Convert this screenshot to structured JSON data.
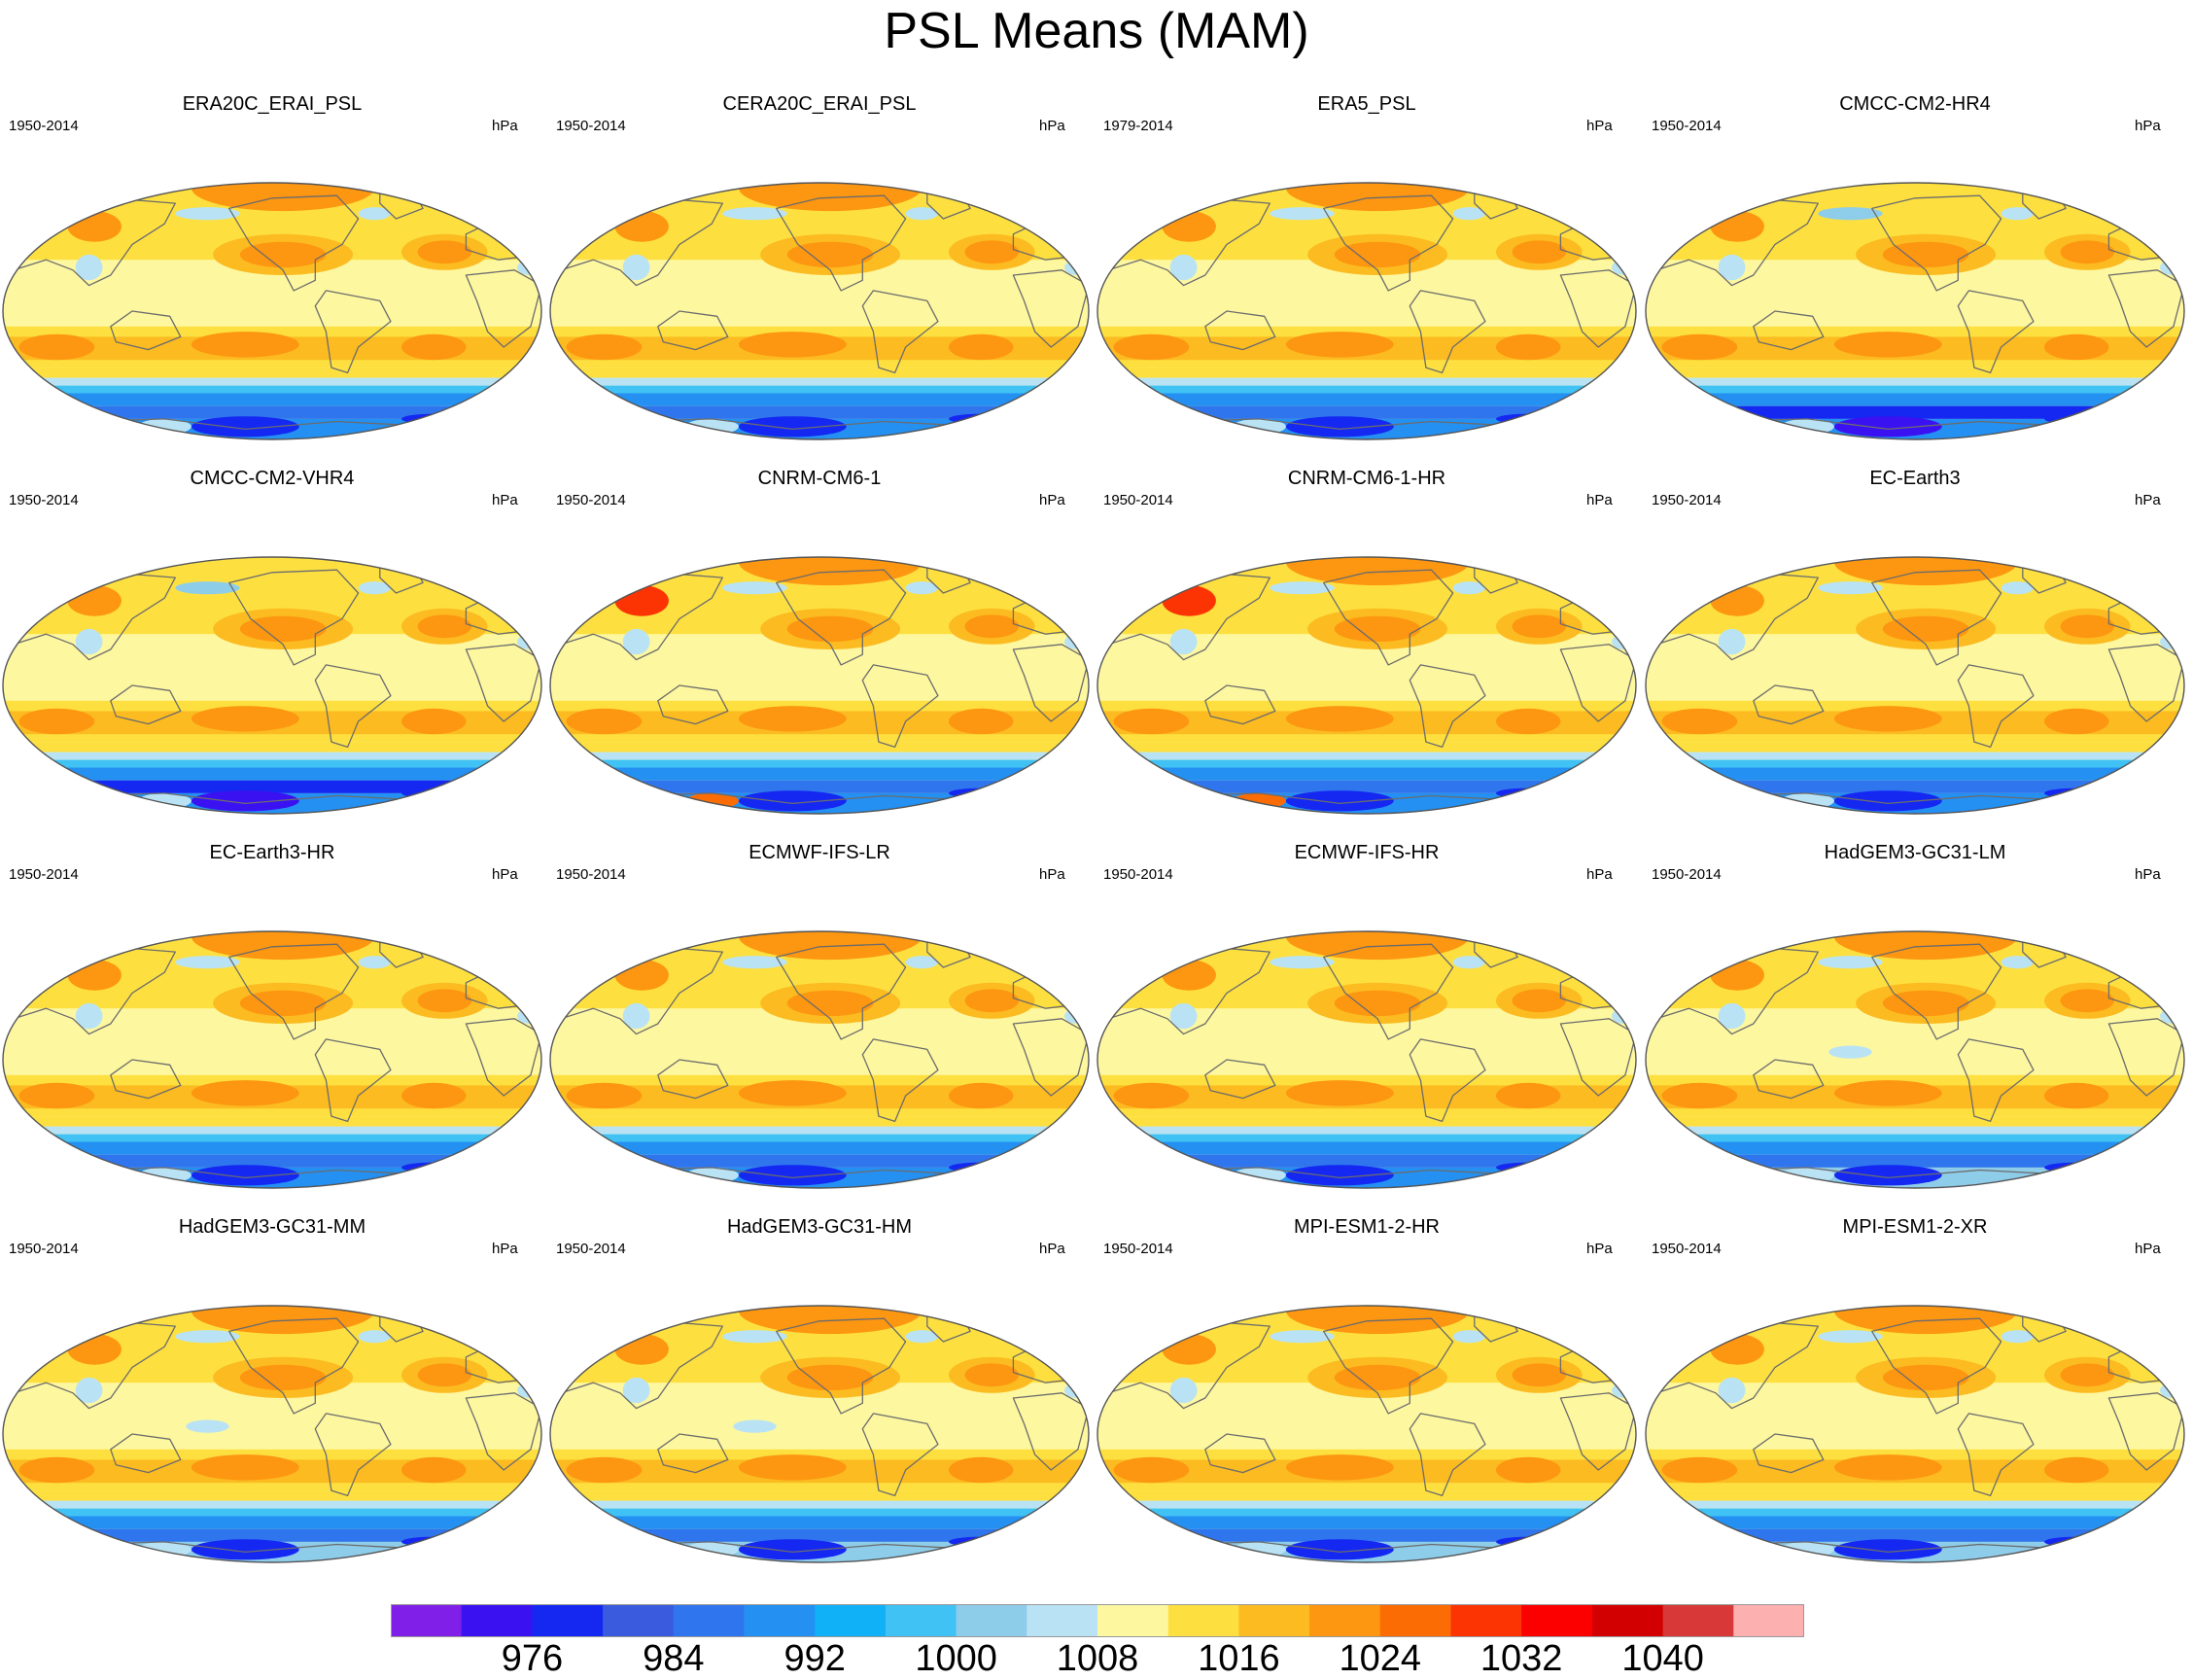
{
  "figure": {
    "title": "PSL Means (MAM)",
    "units": "hPa"
  },
  "panels": [
    {
      "name": "ERA20C_ERAI_PSL",
      "years": "1950-2014",
      "variant": 0
    },
    {
      "name": "CERA20C_ERAI_PSL",
      "years": "1950-2014",
      "variant": 0
    },
    {
      "name": "ERA5_PSL",
      "years": "1979-2014",
      "variant": 0
    },
    {
      "name": "CMCC-CM2-HR4",
      "years": "1950-2014",
      "variant": 1
    },
    {
      "name": "CMCC-CM2-VHR4",
      "years": "1950-2014",
      "variant": 1
    },
    {
      "name": "CNRM-CM6-1",
      "years": "1950-2014",
      "variant": 2
    },
    {
      "name": "CNRM-CM6-1-HR",
      "years": "1950-2014",
      "variant": 2
    },
    {
      "name": "EC-Earth3",
      "years": "1950-2014",
      "variant": 0
    },
    {
      "name": "EC-Earth3-HR",
      "years": "1950-2014",
      "variant": 0
    },
    {
      "name": "ECMWF-IFS-LR",
      "years": "1950-2014",
      "variant": 0
    },
    {
      "name": "ECMWF-IFS-HR",
      "years": "1950-2014",
      "variant": 0
    },
    {
      "name": "HadGEM3-GC31-LM",
      "years": "1950-2014",
      "variant": 3
    },
    {
      "name": "HadGEM3-GC31-MM",
      "years": "1950-2014",
      "variant": 3
    },
    {
      "name": "HadGEM3-GC31-HM",
      "years": "1950-2014",
      "variant": 3
    },
    {
      "name": "MPI-ESM1-2-HR",
      "years": "1950-2014",
      "variant": 4
    },
    {
      "name": "MPI-ESM1-2-XR",
      "years": "1950-2014",
      "variant": 4
    }
  ],
  "colorbar": {
    "colors": [
      "#7f1fe8",
      "#3a12f2",
      "#1428f2",
      "#3b5bdf",
      "#2f76ee",
      "#2390f2",
      "#10b1f6",
      "#40c2f4",
      "#8ecdea",
      "#b9e3f4",
      "#fdf7a0",
      "#fde040",
      "#fcbb20",
      "#fd9610",
      "#fc6c04",
      "#fc3404",
      "#fc0000",
      "#d20000",
      "#d83838",
      "#fcb0b0"
    ],
    "labels": [
      "976",
      "984",
      "992",
      "1000",
      "1008",
      "1016",
      "1024",
      "1032",
      "1040"
    ]
  },
  "colors": {
    "land_outline": "#6c6c6c",
    "map_border": "#555555"
  }
}
